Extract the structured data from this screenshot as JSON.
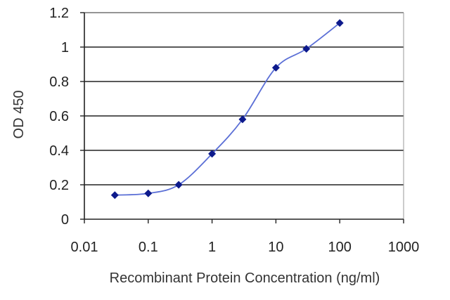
{
  "chart_data": {
    "type": "line",
    "xscale": "log",
    "xlabel": "Recombinant Protein Concentration (ng/ml)",
    "ylabel": "OD 450",
    "xlim": [
      0.01,
      1000
    ],
    "ylim": [
      0,
      1.2
    ],
    "xticks": [
      "0.01",
      "0.1",
      "1",
      "10",
      "100",
      "1000"
    ],
    "yticks": [
      "0",
      "0.2",
      "0.4",
      "0.6",
      "0.8",
      "1",
      "1.2"
    ],
    "grid": "horizontal",
    "legend": "none",
    "series": [
      {
        "x": [
          0.03,
          0.1,
          0.3,
          1,
          3,
          10,
          30,
          100
        ],
        "y": [
          0.14,
          0.15,
          0.2,
          0.38,
          0.58,
          0.88,
          0.99,
          1.14
        ]
      }
    ],
    "colors": {
      "line": "#5b6fd6",
      "marker": "#0d1a8c",
      "grid": "#222222",
      "frame": "#9a9a9a",
      "axis": "#222222"
    }
  }
}
